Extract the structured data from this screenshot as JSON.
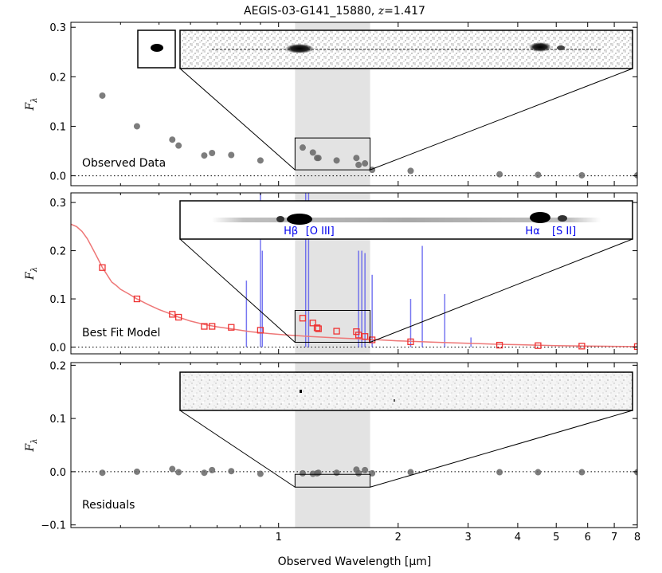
{
  "title": {
    "object": "AEGIS-03-G141_15880,",
    "z_symbol": "z",
    "z_value": "=1.417"
  },
  "colors": {
    "observed": "#666666",
    "model_line": "#ee7777",
    "model_points": "#ee3333",
    "emission_lines": "#5555ee",
    "band": "#e3e3e3"
  },
  "chart_data": {
    "type": "scatter",
    "x_scale": "log",
    "xlabel": "Observed Wavelength [μm]",
    "x_ticks": [
      {
        "value": 1,
        "label": "1"
      },
      {
        "value": 2,
        "label": "2"
      },
      {
        "value": 3,
        "label": "3"
      },
      {
        "value": 4,
        "label": "4"
      },
      {
        "value": 5,
        "label": "5"
      },
      {
        "value": 6,
        "label": "6"
      },
      {
        "value": 7,
        "label": "7"
      },
      {
        "value": 8,
        "label": "8"
      }
    ],
    "grism_band": [
      1.1,
      1.7
    ],
    "panels": [
      {
        "label": "Observed Data",
        "ylabel_symbol": "F",
        "ylabel_subscript": "λ",
        "ylim": [
          -0.02,
          0.31
        ],
        "y_ticks": [
          {
            "value": 0.0,
            "label": "0.0"
          },
          {
            "value": 0.1,
            "label": "0.1"
          },
          {
            "value": 0.2,
            "label": "0.2"
          },
          {
            "value": 0.3,
            "label": "0.3"
          }
        ],
        "points": [
          {
            "x": 0.36,
            "y": 0.162
          },
          {
            "x": 0.44,
            "y": 0.1
          },
          {
            "x": 0.54,
            "y": 0.073
          },
          {
            "x": 0.56,
            "y": 0.061
          },
          {
            "x": 0.65,
            "y": 0.041
          },
          {
            "x": 0.68,
            "y": 0.046
          },
          {
            "x": 0.76,
            "y": 0.042
          },
          {
            "x": 0.9,
            "y": 0.031
          },
          {
            "x": 1.15,
            "y": 0.057
          },
          {
            "x": 1.22,
            "y": 0.047
          },
          {
            "x": 1.25,
            "y": 0.036
          },
          {
            "x": 1.26,
            "y": 0.036
          },
          {
            "x": 1.4,
            "y": 0.031
          },
          {
            "x": 1.57,
            "y": 0.036
          },
          {
            "x": 1.59,
            "y": 0.022
          },
          {
            "x": 1.65,
            "y": 0.025
          },
          {
            "x": 1.72,
            "y": 0.012
          },
          {
            "x": 2.15,
            "y": 0.01
          },
          {
            "x": 3.6,
            "y": 0.003
          },
          {
            "x": 4.5,
            "y": 0.002
          },
          {
            "x": 5.8,
            "y": 0.001
          },
          {
            "x": 8.0,
            "y": 0.001
          }
        ]
      },
      {
        "label": "Best Fit Model",
        "ylabel_symbol": "F",
        "ylabel_subscript": "λ",
        "ylim": [
          -0.014,
          0.32
        ],
        "y_ticks": [
          {
            "value": 0.0,
            "label": "0.0"
          },
          {
            "value": 0.1,
            "label": "0.1"
          },
          {
            "value": 0.2,
            "label": "0.2"
          },
          {
            "value": 0.3,
            "label": "0.3"
          }
        ],
        "model_curve": [
          {
            "x": 0.3,
            "y": 0.255
          },
          {
            "x": 0.31,
            "y": 0.25
          },
          {
            "x": 0.32,
            "y": 0.24
          },
          {
            "x": 0.33,
            "y": 0.225
          },
          {
            "x": 0.34,
            "y": 0.205
          },
          {
            "x": 0.35,
            "y": 0.185
          },
          {
            "x": 0.36,
            "y": 0.165
          },
          {
            "x": 0.37,
            "y": 0.15
          },
          {
            "x": 0.38,
            "y": 0.135
          },
          {
            "x": 0.39,
            "y": 0.128
          },
          {
            "x": 0.4,
            "y": 0.12
          },
          {
            "x": 0.42,
            "y": 0.11
          },
          {
            "x": 0.44,
            "y": 0.1
          },
          {
            "x": 0.47,
            "y": 0.088
          },
          {
            "x": 0.5,
            "y": 0.078
          },
          {
            "x": 0.53,
            "y": 0.07
          },
          {
            "x": 0.56,
            "y": 0.062
          },
          {
            "x": 0.6,
            "y": 0.054
          },
          {
            "x": 0.65,
            "y": 0.047
          },
          {
            "x": 0.7,
            "y": 0.042
          },
          {
            "x": 0.76,
            "y": 0.038
          },
          {
            "x": 0.85,
            "y": 0.032
          },
          {
            "x": 0.95,
            "y": 0.028
          },
          {
            "x": 1.05,
            "y": 0.025
          },
          {
            "x": 1.2,
            "y": 0.022
          },
          {
            "x": 1.4,
            "y": 0.019
          },
          {
            "x": 1.6,
            "y": 0.017
          },
          {
            "x": 1.8,
            "y": 0.015
          },
          {
            "x": 2.0,
            "y": 0.013
          },
          {
            "x": 2.5,
            "y": 0.01
          },
          {
            "x": 3.0,
            "y": 0.008
          },
          {
            "x": 3.5,
            "y": 0.006
          },
          {
            "x": 4.0,
            "y": 0.005
          },
          {
            "x": 5.0,
            "y": 0.003
          },
          {
            "x": 6.0,
            "y": 0.002
          },
          {
            "x": 7.0,
            "y": 0.0015
          },
          {
            "x": 8.0,
            "y": 0.001
          }
        ],
        "model_points": [
          {
            "x": 0.36,
            "y": 0.165
          },
          {
            "x": 0.44,
            "y": 0.1
          },
          {
            "x": 0.54,
            "y": 0.068
          },
          {
            "x": 0.56,
            "y": 0.062
          },
          {
            "x": 0.65,
            "y": 0.043
          },
          {
            "x": 0.68,
            "y": 0.043
          },
          {
            "x": 0.76,
            "y": 0.041
          },
          {
            "x": 0.9,
            "y": 0.035
          },
          {
            "x": 1.15,
            "y": 0.06
          },
          {
            "x": 1.22,
            "y": 0.05
          },
          {
            "x": 1.25,
            "y": 0.04
          },
          {
            "x": 1.26,
            "y": 0.038
          },
          {
            "x": 1.4,
            "y": 0.033
          },
          {
            "x": 1.57,
            "y": 0.032
          },
          {
            "x": 1.59,
            "y": 0.025
          },
          {
            "x": 1.65,
            "y": 0.022
          },
          {
            "x": 1.72,
            "y": 0.015
          },
          {
            "x": 2.15,
            "y": 0.011
          },
          {
            "x": 3.6,
            "y": 0.004
          },
          {
            "x": 4.5,
            "y": 0.003
          },
          {
            "x": 5.8,
            "y": 0.002
          },
          {
            "x": 8.0,
            "y": 0.001
          }
        ],
        "emission_lines": [
          {
            "x": 0.9,
            "y": 0.32
          },
          {
            "x": 0.83,
            "y": 0.138
          },
          {
            "x": 0.91,
            "y": 0.2
          },
          {
            "x": 1.17,
            "y": 0.32
          },
          {
            "x": 1.19,
            "y": 0.32
          },
          {
            "x": 1.59,
            "y": 0.2
          },
          {
            "x": 1.62,
            "y": 0.2
          },
          {
            "x": 1.65,
            "y": 0.195
          },
          {
            "x": 1.72,
            "y": 0.15
          },
          {
            "x": 2.15,
            "y": 0.1
          },
          {
            "x": 2.3,
            "y": 0.21
          },
          {
            "x": 2.62,
            "y": 0.11
          },
          {
            "x": 3.05,
            "y": 0.02
          }
        ],
        "line_labels": [
          {
            "text": "Hβ",
            "x": 1.03
          },
          {
            "text": "[O III]",
            "x": 1.17
          },
          {
            "text": "Hα",
            "x": 4.18
          },
          {
            "text": "[S II]",
            "x": 4.88
          }
        ]
      },
      {
        "label": "Residuals",
        "ylabel_symbol": "F",
        "ylabel_subscript": "λ",
        "ylim": [
          -0.105,
          0.205
        ],
        "y_ticks": [
          {
            "value": -0.1,
            "label": "−0.1"
          },
          {
            "value": 0.0,
            "label": "0.0"
          },
          {
            "value": 0.1,
            "label": "0.1"
          },
          {
            "value": 0.2,
            "label": "0.2"
          }
        ],
        "points": [
          {
            "x": 0.36,
            "y": -0.002
          },
          {
            "x": 0.44,
            "y": 0.0
          },
          {
            "x": 0.54,
            "y": 0.005
          },
          {
            "x": 0.56,
            "y": -0.001
          },
          {
            "x": 0.65,
            "y": -0.002
          },
          {
            "x": 0.68,
            "y": 0.003
          },
          {
            "x": 0.76,
            "y": 0.001
          },
          {
            "x": 0.9,
            "y": -0.004
          },
          {
            "x": 1.15,
            "y": -0.003
          },
          {
            "x": 1.22,
            "y": -0.004
          },
          {
            "x": 1.25,
            "y": -0.003
          },
          {
            "x": 1.26,
            "y": -0.002
          },
          {
            "x": 1.4,
            "y": -0.002
          },
          {
            "x": 1.57,
            "y": 0.004
          },
          {
            "x": 1.59,
            "y": -0.003
          },
          {
            "x": 1.65,
            "y": 0.003
          },
          {
            "x": 1.72,
            "y": -0.003
          },
          {
            "x": 2.15,
            "y": -0.001
          },
          {
            "x": 3.6,
            "y": -0.001
          },
          {
            "x": 4.5,
            "y": -0.001
          },
          {
            "x": 5.8,
            "y": -0.001
          },
          {
            "x": 8.0,
            "y": -0.001
          }
        ]
      }
    ]
  }
}
